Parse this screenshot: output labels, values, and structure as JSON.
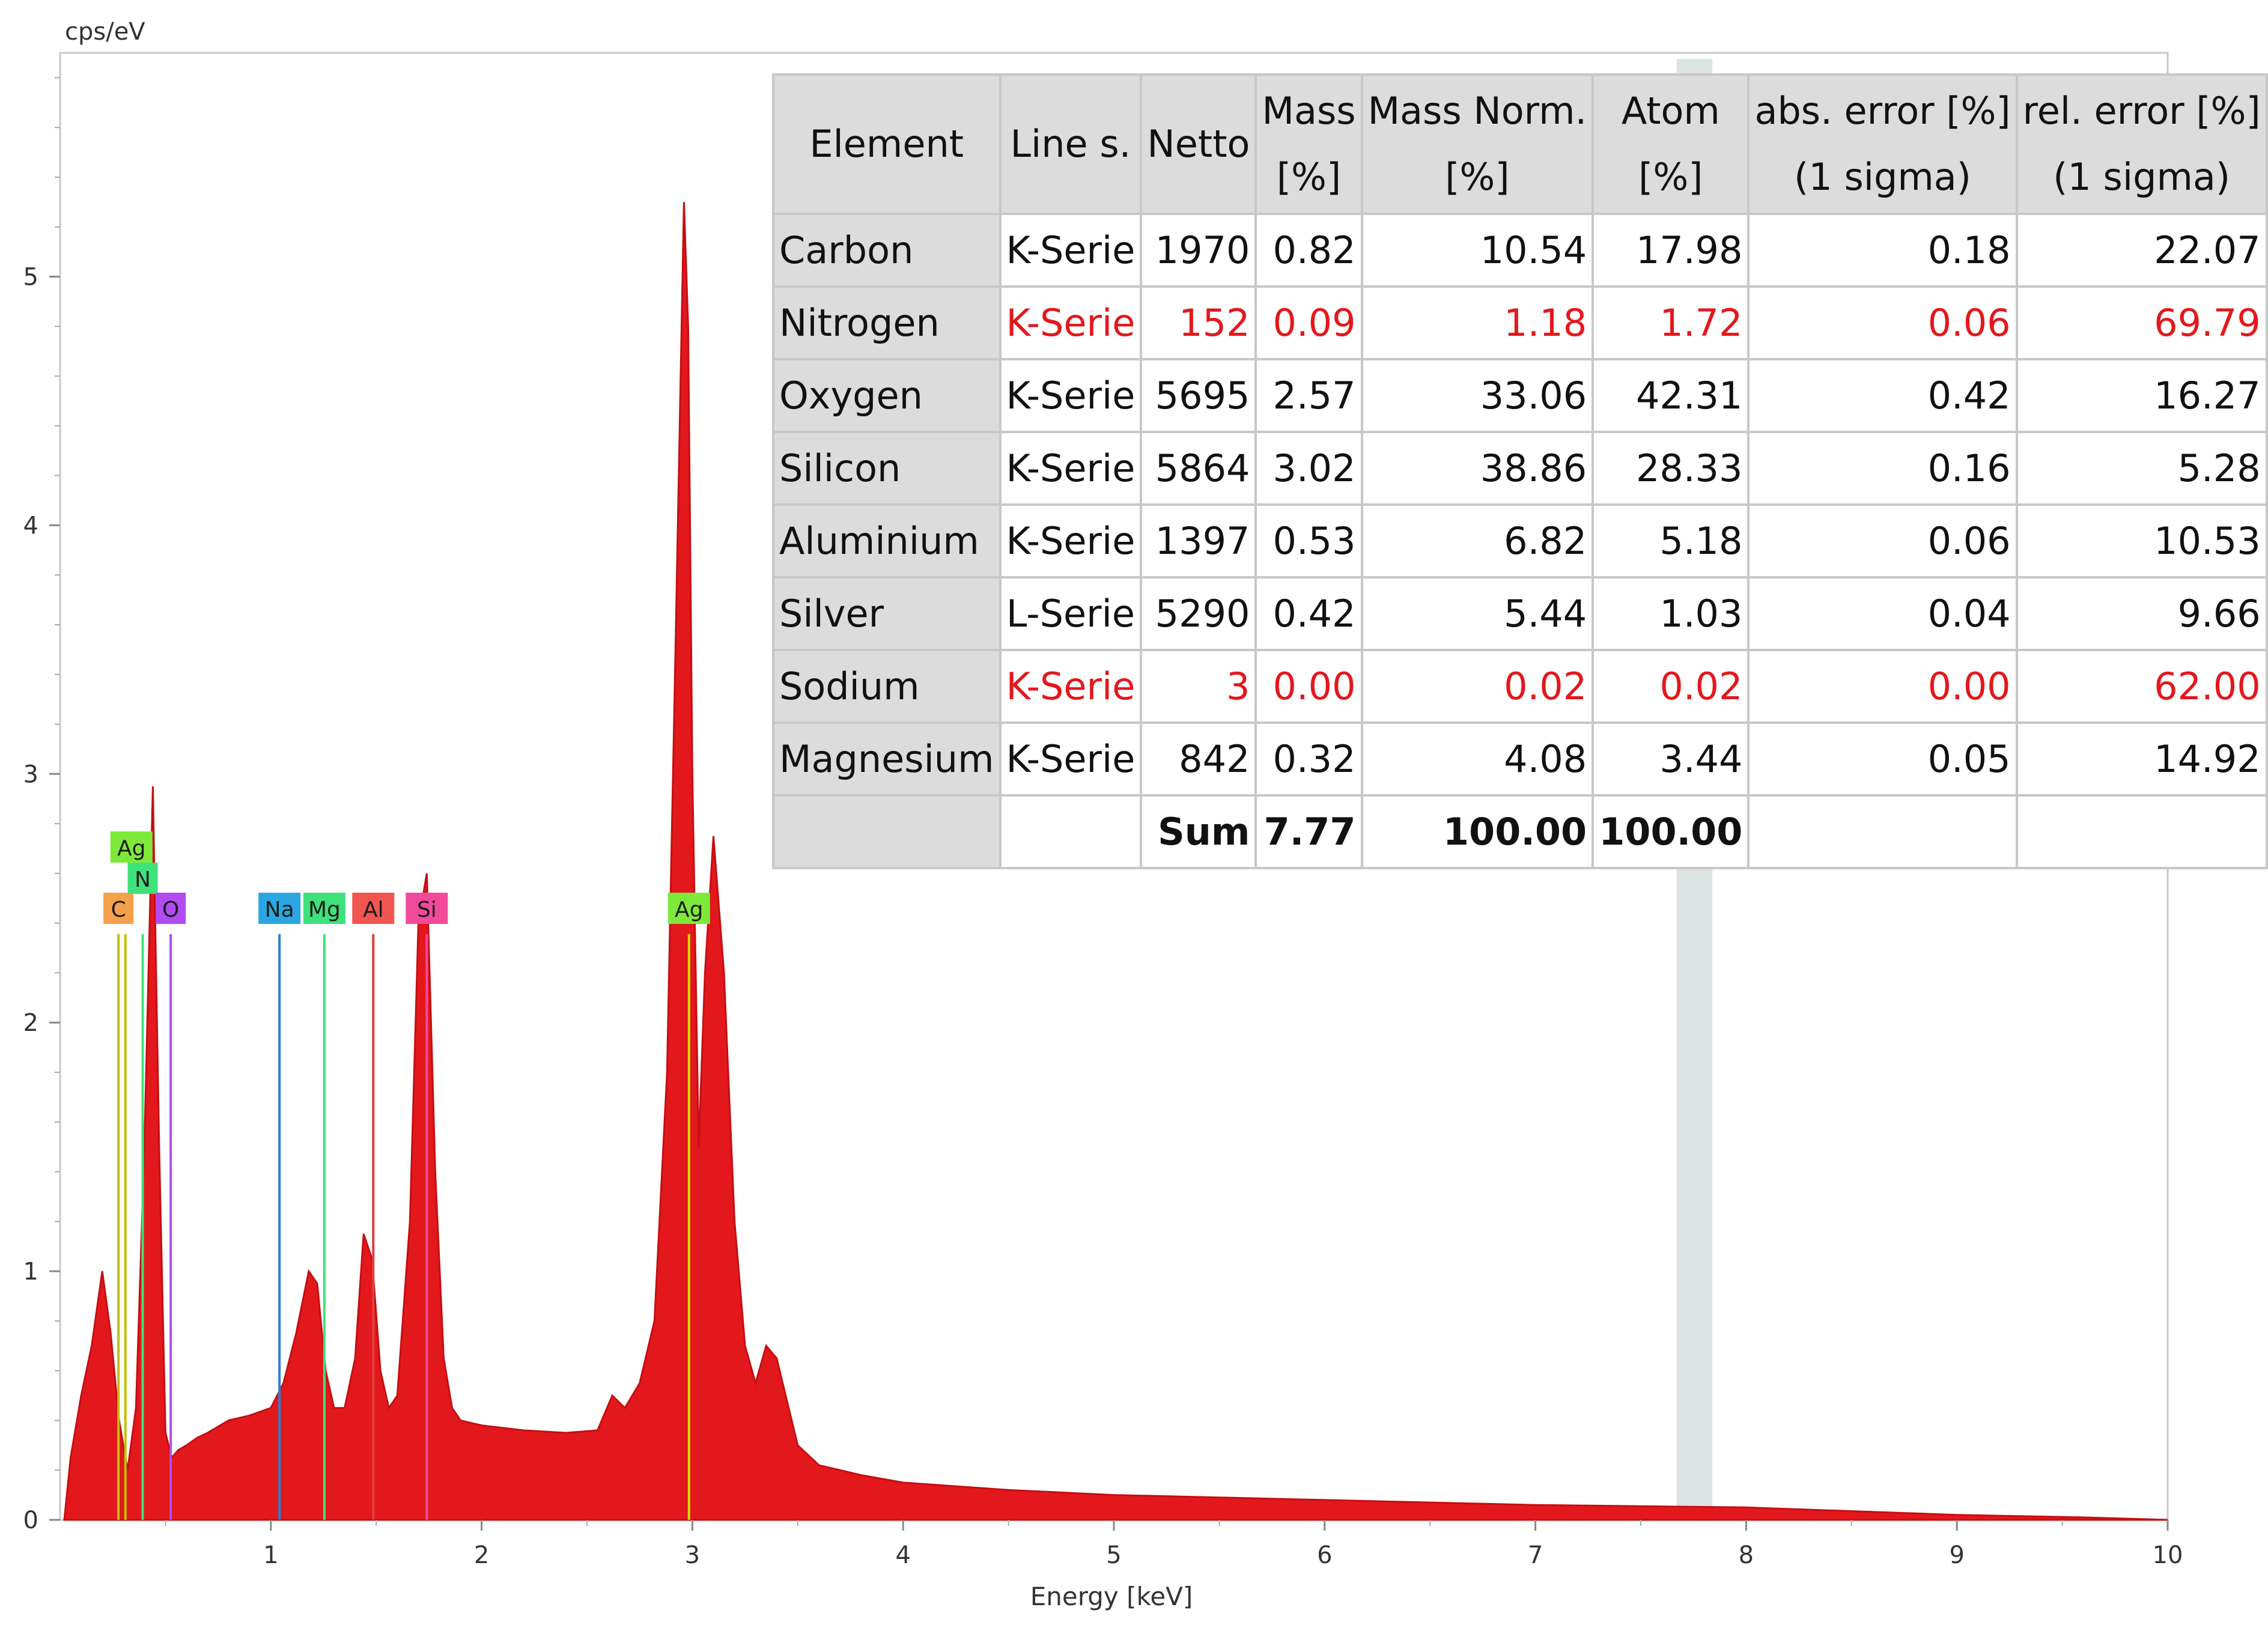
{
  "chart_data": {
    "type": "area",
    "title": "",
    "xlabel": "Energy [keV]",
    "ylabel": "cps/eV",
    "xlim": [
      0,
      10
    ],
    "ylim": [
      0,
      5.9
    ],
    "xticks": [
      1,
      2,
      3,
      4,
      5,
      6,
      7,
      8,
      9,
      10
    ],
    "yticks": [
      0,
      1,
      2,
      3,
      4,
      5
    ],
    "grid": false,
    "fill_color": "#e3181d",
    "series": [
      {
        "x": [
          0.02,
          0.05,
          0.1,
          0.15,
          0.2,
          0.24,
          0.28,
          0.32,
          0.36,
          0.4,
          0.44,
          0.47,
          0.5,
          0.53,
          0.56,
          0.6,
          0.65,
          0.7,
          0.8,
          0.9,
          1.0,
          1.06,
          1.12,
          1.18,
          1.22,
          1.26,
          1.3,
          1.35,
          1.4,
          1.44,
          1.48,
          1.52,
          1.56,
          1.6,
          1.66,
          1.7,
          1.74,
          1.78,
          1.82,
          1.86,
          1.9,
          2.0,
          2.2,
          2.4,
          2.55,
          2.62,
          2.68,
          2.75,
          2.82,
          2.88,
          2.92,
          2.96,
          2.98,
          3.0,
          3.03,
          3.06,
          3.1,
          3.15,
          3.2,
          3.25,
          3.3,
          3.35,
          3.4,
          3.5,
          3.6,
          3.8,
          4.0,
          4.5,
          5.0,
          6.0,
          7.0,
          8.0,
          9.0,
          9.6,
          10.0
        ],
        "y": [
          0.0,
          0.25,
          0.5,
          0.7,
          1.0,
          0.75,
          0.4,
          0.2,
          0.45,
          1.5,
          2.95,
          1.5,
          0.35,
          0.25,
          0.28,
          0.3,
          0.33,
          0.35,
          0.4,
          0.42,
          0.45,
          0.55,
          0.75,
          1.0,
          0.95,
          0.6,
          0.45,
          0.45,
          0.65,
          1.15,
          1.05,
          0.6,
          0.45,
          0.5,
          1.2,
          2.4,
          2.6,
          1.4,
          0.65,
          0.45,
          0.4,
          0.38,
          0.36,
          0.35,
          0.36,
          0.5,
          0.45,
          0.55,
          0.8,
          1.8,
          3.5,
          5.3,
          4.8,
          3.0,
          1.5,
          2.2,
          2.75,
          2.2,
          1.2,
          0.7,
          0.55,
          0.7,
          0.65,
          0.3,
          0.22,
          0.18,
          0.15,
          0.12,
          0.1,
          0.08,
          0.06,
          0.05,
          0.02,
          0.01,
          0.0
        ]
      }
    ],
    "element_markers": [
      {
        "label": "C",
        "energy": 0.277,
        "color": "#f5a04a",
        "line_color": "#c0c000"
      },
      {
        "label": "Ag",
        "energy": 0.31,
        "color": "#7dea3a",
        "line_color": "#c0c000"
      },
      {
        "label": "N",
        "energy": 0.392,
        "color": "#3ee27a",
        "line_color": "#3ee27a"
      },
      {
        "label": "O",
        "energy": 0.525,
        "color": "#b14cf2",
        "line_color": "#b14cf2"
      },
      {
        "label": "Na",
        "energy": 1.041,
        "color": "#2aa7e0",
        "line_color": "#2a7fd0"
      },
      {
        "label": "Mg",
        "energy": 1.254,
        "color": "#3ee27a",
        "line_color": "#3ee27a"
      },
      {
        "label": "Al",
        "energy": 1.486,
        "color": "#f0564f",
        "line_color": "#e04040"
      },
      {
        "label": "Si",
        "energy": 1.74,
        "color": "#f24a9a",
        "line_color": "#f24a9a"
      },
      {
        "label": "Ag",
        "energy": 2.984,
        "color": "#7dea3a",
        "line_color": "#d8d800"
      }
    ],
    "highlight_band": {
      "from": 7.67,
      "to": 7.84,
      "color": "#dde3e3"
    },
    "table": {
      "columns": [
        "Element",
        "Line s.",
        "Netto",
        "Mass [%]",
        "Mass Norm. [%]",
        "Atom [%]",
        "abs. error [%] (1 sigma)",
        "rel. error [%] (1 sigma)"
      ],
      "header_lines": [
        [
          "Element"
        ],
        [
          "Line s."
        ],
        [
          "Netto"
        ],
        [
          "Mass",
          "[%]"
        ],
        [
          "Mass Norm.",
          "[%]"
        ],
        [
          "Atom",
          "[%]"
        ],
        [
          "abs. error [%]",
          "(1 sigma)"
        ],
        [
          "rel. error [%]",
          "(1 sigma)"
        ]
      ],
      "rows": [
        {
          "element": "Carbon",
          "line": "K-Serie",
          "netto": "1970",
          "mass": "0.82",
          "mass_norm": "10.54",
          "atom": "17.98",
          "abs_err": "0.18",
          "rel_err": "22.07",
          "flag_red": false
        },
        {
          "element": "Nitrogen",
          "line": "K-Serie",
          "netto": "152",
          "mass": "0.09",
          "mass_norm": "1.18",
          "atom": "1.72",
          "abs_err": "0.06",
          "rel_err": "69.79",
          "flag_red": true
        },
        {
          "element": "Oxygen",
          "line": "K-Serie",
          "netto": "5695",
          "mass": "2.57",
          "mass_norm": "33.06",
          "atom": "42.31",
          "abs_err": "0.42",
          "rel_err": "16.27",
          "flag_red": false
        },
        {
          "element": "Silicon",
          "line": "K-Serie",
          "netto": "5864",
          "mass": "3.02",
          "mass_norm": "38.86",
          "atom": "28.33",
          "abs_err": "0.16",
          "rel_err": "5.28",
          "flag_red": false
        },
        {
          "element": "Aluminium",
          "line": "K-Serie",
          "netto": "1397",
          "mass": "0.53",
          "mass_norm": "6.82",
          "atom": "5.18",
          "abs_err": "0.06",
          "rel_err": "10.53",
          "flag_red": false
        },
        {
          "element": "Silver",
          "line": "L-Serie",
          "netto": "5290",
          "mass": "0.42",
          "mass_norm": "5.44",
          "atom": "1.03",
          "abs_err": "0.04",
          "rel_err": "9.66",
          "flag_red": false
        },
        {
          "element": "Sodium",
          "line": "K-Serie",
          "netto": "3",
          "mass": "0.00",
          "mass_norm": "0.02",
          "atom": "0.02",
          "abs_err": "0.00",
          "rel_err": "62.00",
          "flag_red": true
        },
        {
          "element": "Magnesium",
          "line": "K-Serie",
          "netto": "842",
          "mass": "0.32",
          "mass_norm": "4.08",
          "atom": "3.44",
          "abs_err": "0.05",
          "rel_err": "14.92",
          "flag_red": false
        }
      ],
      "sum": {
        "label": "Sum",
        "mass": "7.77",
        "mass_norm": "100.00",
        "atom": "100.00"
      }
    }
  }
}
